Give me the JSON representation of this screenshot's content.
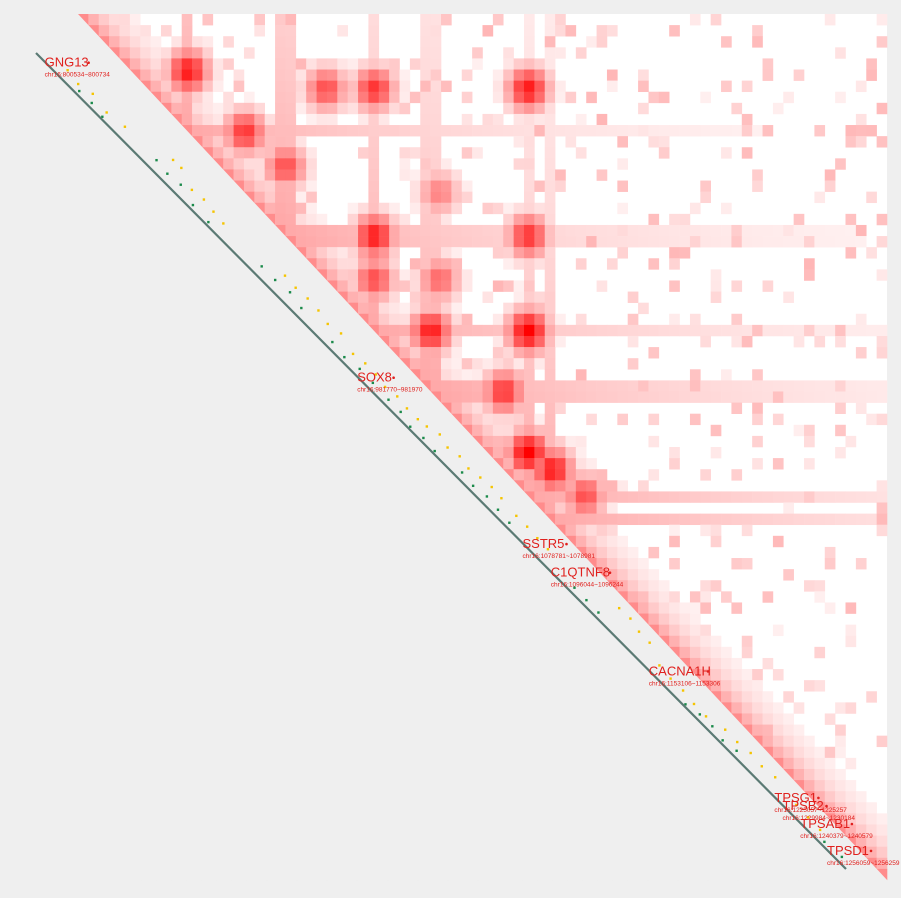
{
  "chart_data": {
    "type": "heatmap",
    "title": "",
    "colors": {
      "background": "#efefef",
      "matrix_bg": "#ffffff",
      "high": "#ff0000",
      "diagonal": "#5b7a74",
      "gene_label": "#e0201d",
      "track_green": "#1a8a4a",
      "track_yellow": "#f5c400"
    },
    "genes": [
      {
        "name": "GNG13",
        "coord": "chr16:800534~800734",
        "pos": 0.018
      },
      {
        "name": "SOX8",
        "coord": "chr16:981770~981970",
        "pos": 0.404
      },
      {
        "name": "SSTR5",
        "coord": "chr16:1078781~1078981",
        "pos": 0.608
      },
      {
        "name": "C1QTNF8",
        "coord": "chr16:1096044~1096244",
        "pos": 0.643
      },
      {
        "name": "CACNA1H",
        "coord": "chr16:1153106~1153306",
        "pos": 0.764
      },
      {
        "name": "TPSG1",
        "coord": "chr16:1225057~1225257",
        "pos": 0.919
      },
      {
        "name": "TPSB2",
        "coord": "chr16:1229984~1230184",
        "pos": 0.929
      },
      {
        "name": "TPSAB1",
        "coord": "chr16:1240379~1240579",
        "pos": 0.951
      },
      {
        "name": "TPSD1",
        "coord": "chr16:1256059~1256259",
        "pos": 0.984
      }
    ],
    "hotspots": [
      {
        "a": 0.06,
        "b": 0.13,
        "v": 0.9
      },
      {
        "a": 0.08,
        "b": 0.3,
        "v": 0.7
      },
      {
        "a": 0.08,
        "b": 0.36,
        "v": 0.8
      },
      {
        "a": 0.08,
        "b": 0.55,
        "v": 0.9
      },
      {
        "a": 0.13,
        "b": 0.2,
        "v": 0.8
      },
      {
        "a": 0.17,
        "b": 0.25,
        "v": 0.7
      },
      {
        "a": 0.25,
        "b": 0.36,
        "v": 0.9
      },
      {
        "a": 0.25,
        "b": 0.55,
        "v": 0.8
      },
      {
        "a": 0.3,
        "b": 0.36,
        "v": 0.7
      },
      {
        "a": 0.36,
        "b": 0.43,
        "v": 0.9
      },
      {
        "a": 0.36,
        "b": 0.55,
        "v": 1.0
      },
      {
        "a": 0.43,
        "b": 0.52,
        "v": 0.8
      },
      {
        "a": 0.5,
        "b": 0.55,
        "v": 1.0
      },
      {
        "a": 0.52,
        "b": 0.58,
        "v": 0.9
      },
      {
        "a": 0.55,
        "b": 0.62,
        "v": 0.7
      },
      {
        "a": 0.3,
        "b": 0.44,
        "v": 0.6
      },
      {
        "a": 0.2,
        "b": 0.44,
        "v": 0.5
      }
    ],
    "stripes": [
      0.13,
      0.25,
      0.36,
      0.43,
      0.55,
      0.58
    ],
    "grid": false,
    "legend": "none"
  }
}
